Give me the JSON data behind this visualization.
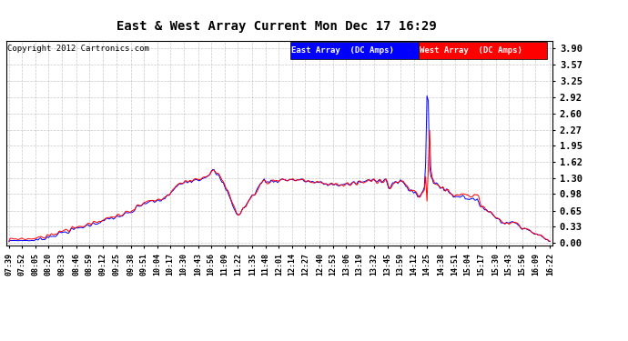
{
  "title": "East & West Array Current Mon Dec 17 16:29",
  "copyright": "Copyright 2012 Cartronics.com",
  "east_label": "East Array  (DC Amps)",
  "west_label": "West Array  (DC Amps)",
  "east_color": "#0000ff",
  "west_color": "#ff0000",
  "background_color": "#ffffff",
  "grid_color": "#bbbbbb",
  "yticks": [
    0.0,
    0.33,
    0.65,
    0.98,
    1.3,
    1.62,
    1.95,
    2.27,
    2.6,
    2.92,
    3.25,
    3.57,
    3.9
  ],
  "ylim": [
    -0.05,
    4.05
  ],
  "x_labels": [
    "07:39",
    "07:52",
    "08:05",
    "08:20",
    "08:33",
    "08:46",
    "08:59",
    "09:12",
    "09:25",
    "09:38",
    "09:51",
    "10:04",
    "10:17",
    "10:30",
    "10:43",
    "10:56",
    "11:09",
    "11:22",
    "11:35",
    "11:48",
    "12:01",
    "12:14",
    "12:27",
    "12:40",
    "12:53",
    "13:06",
    "13:19",
    "13:32",
    "13:45",
    "13:59",
    "14:12",
    "14:25",
    "14:38",
    "14:51",
    "15:04",
    "15:17",
    "15:30",
    "15:43",
    "15:56",
    "16:09",
    "16:22"
  ]
}
